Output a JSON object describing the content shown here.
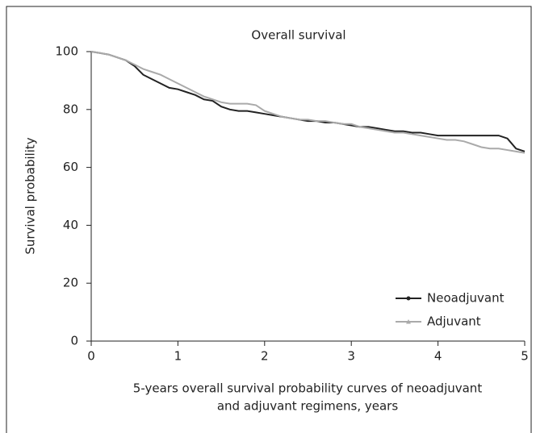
{
  "chart_data": {
    "type": "line",
    "title": "Overall survival",
    "x_label_lines": [
      "5-years overall survival probability curves of neoadjuvant",
      "and adjuvant regimens, years"
    ],
    "y_label": "Survival probability",
    "x": [
      0,
      0.1,
      0.2,
      0.3,
      0.4,
      0.5,
      0.6,
      0.7,
      0.8,
      0.9,
      1,
      1.1,
      1.2,
      1.3,
      1.4,
      1.5,
      1.6,
      1.7,
      1.8,
      1.9,
      2,
      2.1,
      2.2,
      2.3,
      2.4,
      2.5,
      2.6,
      2.7,
      2.8,
      2.9,
      3,
      3.1,
      3.2,
      3.3,
      3.4,
      3.5,
      3.6,
      3.7,
      3.8,
      3.9,
      4,
      4.1,
      4.2,
      4.3,
      4.4,
      4.5,
      4.6,
      4.7,
      4.8,
      4.9,
      5
    ],
    "series": [
      {
        "name": "Neoadjuvant",
        "color": "#222222",
        "marker": "circle",
        "values": [
          100,
          99.5,
          99,
          98,
          97,
          95,
          92,
          90.5,
          89,
          87.5,
          87,
          86,
          85,
          83.5,
          83,
          81,
          80,
          79.5,
          79.5,
          79,
          78.5,
          78,
          77.5,
          77,
          76.5,
          76,
          76,
          75.5,
          75.5,
          75,
          74.5,
          74,
          74,
          73.5,
          73,
          72.5,
          72.5,
          72,
          72,
          71.5,
          71,
          71,
          71,
          71,
          71,
          71,
          71,
          71,
          70,
          66.5,
          65.5
        ]
      },
      {
        "name": "Adjuvant",
        "color": "#aaaaaa",
        "marker": "triangle",
        "values": [
          100,
          99.5,
          99,
          98,
          97,
          95.5,
          94,
          93,
          92,
          90.5,
          89,
          87.5,
          86,
          84.5,
          83.5,
          82.5,
          82,
          82,
          82,
          81.5,
          79.5,
          78.5,
          77.5,
          77,
          76.5,
          76.5,
          76,
          76,
          75.5,
          75,
          75,
          74,
          73.5,
          73,
          72.5,
          72,
          72,
          71.5,
          71,
          70.5,
          70,
          69.5,
          69.5,
          69,
          68,
          67,
          66.5,
          66.5,
          66,
          65.5,
          65
        ]
      }
    ],
    "xlim": [
      0,
      5
    ],
    "xticks": [
      0,
      1,
      2,
      3,
      4,
      5
    ],
    "ylim": [
      0,
      100
    ],
    "yticks": [
      0,
      20,
      40,
      60,
      80,
      100
    ],
    "legend": "lower right"
  }
}
